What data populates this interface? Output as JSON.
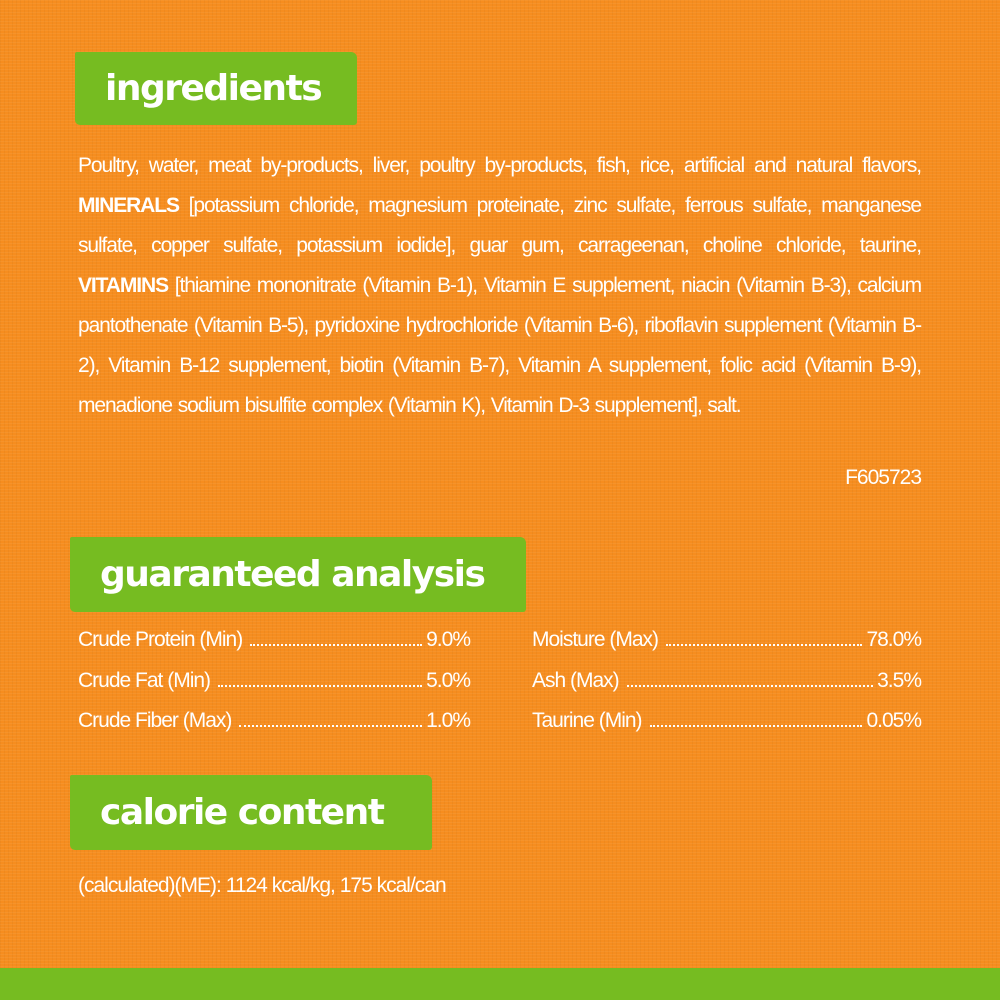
{
  "colors": {
    "background": "#f68d1f",
    "accent": "#76bc21",
    "text": "#ffffff"
  },
  "ingredients": {
    "title": "ingredients",
    "part1": "Poultry, water, meat by-products, liver, poultry by-products, fish, rice, artificial and natural flavors, ",
    "minerals_label": "MINERALS",
    "part2": " [potassium chloride, magnesium proteinate, zinc sulfate, ferrous sulfate, manganese sulfate, copper sulfate, potassium iodide], guar gum, carrageenan, choline chloride, taurine, ",
    "vitamins_label": "VITAMINS",
    "part3": " [thiamine mononitrate (Vitamin B-1), Vitamin E supplement, niacin (Vitamin B-3), calcium pantothenate (Vitamin B-5), pyridoxine hydrochloride (Vitamin B-6), riboflavin supplement (Vitamin B-2), Vitamin B-12 supplement, biotin (Vitamin B-7), Vitamin A supplement, folic acid (Vitamin B-9), menadione sodium bisulfite complex (Vitamin K), Vitamin D-3 supplement], salt.",
    "code": "F605723"
  },
  "analysis": {
    "title": "guaranteed analysis",
    "left": [
      {
        "label": "Crude Protein (Min)",
        "value": "9.0%"
      },
      {
        "label": "Crude Fat (Min)",
        "value": "5.0%"
      },
      {
        "label": "Crude Fiber (Max)",
        "value": "1.0%"
      }
    ],
    "right": [
      {
        "label": "Moisture (Max)",
        "value": "78.0%"
      },
      {
        "label": "Ash (Max)",
        "value": "3.5%"
      },
      {
        "label": "Taurine (Min)",
        "value": "0.05%"
      }
    ]
  },
  "calorie": {
    "title": "calorie content",
    "text": "(calculated)(ME): 1124 kcal/kg, 175 kcal/can"
  }
}
